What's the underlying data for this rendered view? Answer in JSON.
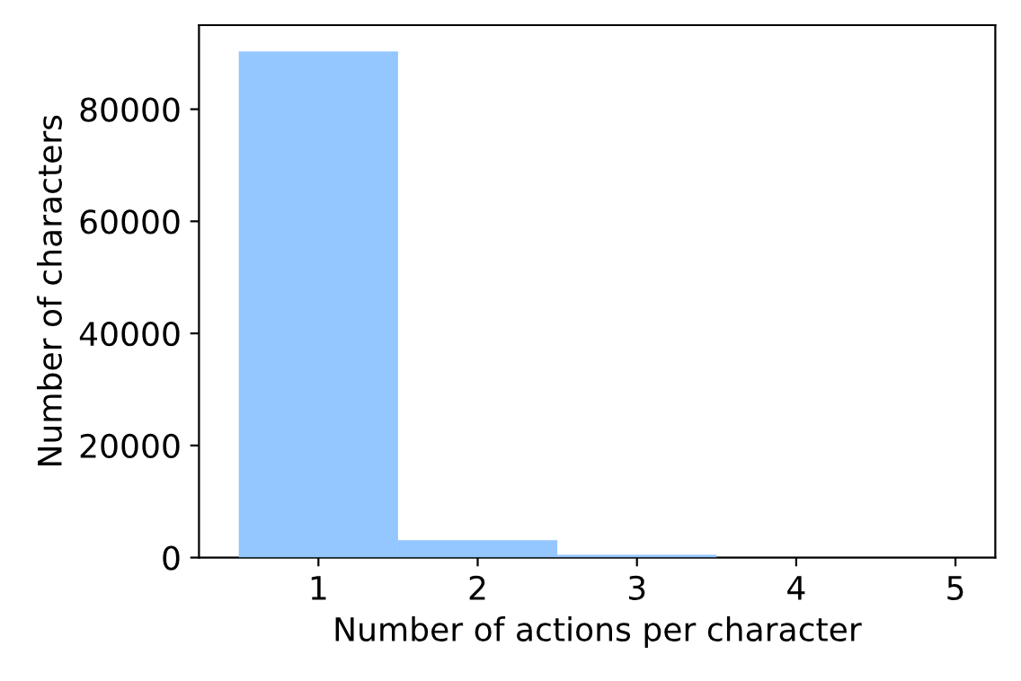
{
  "chart_data": {
    "type": "histogram",
    "xlabel": "Number of actions per character",
    "ylabel": "Number of characters",
    "bins": [
      0.5,
      1.5,
      2.5,
      3.5
    ],
    "values": [
      90300,
      3100,
      500
    ],
    "color": "#94c6ff",
    "xlim": [
      0.25,
      5.25
    ],
    "xticks": [
      1,
      2,
      3,
      4,
      5
    ],
    "ylim": [
      0,
      95000
    ],
    "yticks": [
      0,
      20000,
      40000,
      60000,
      80000
    ],
    "grid": false
  }
}
